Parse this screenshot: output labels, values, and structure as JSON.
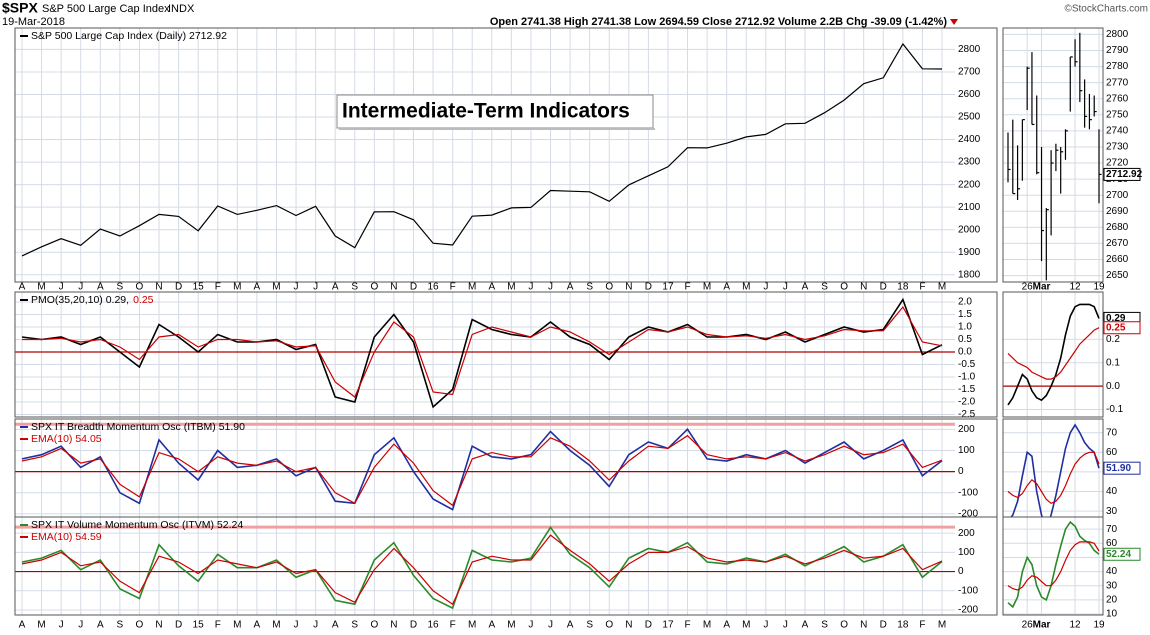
{
  "header": {
    "symbol": "$SPX",
    "name": "S&P 500 Large Cap Index",
    "exchange": "INDX",
    "date": "19-Mar-2018",
    "stats": "Open 2741.38 High 2741.38 Low 2694.59 Close 2712.92 Volume 2.2B Chg -39.09 (-1.42%)",
    "credit": "©StockCharts.com"
  },
  "chart_data": [
    {
      "type": "line",
      "annotation": "Intermediate-Term Indicators",
      "categories": [
        "A",
        "M",
        "J",
        "J",
        "A",
        "S",
        "O",
        "N",
        "D",
        "15",
        "F",
        "M",
        "A",
        "M",
        "J",
        "J",
        "A",
        "S",
        "O",
        "N",
        "D",
        "16",
        "F",
        "M",
        "A",
        "M",
        "J",
        "J",
        "A",
        "S",
        "O",
        "N",
        "D",
        "17",
        "F",
        "M",
        "A",
        "M",
        "J",
        "J",
        "A",
        "S",
        "O",
        "N",
        "D",
        "18",
        "F",
        "M"
      ],
      "ylim": [
        1768,
        2895
      ],
      "yticks": [
        1800,
        1900,
        2000,
        2100,
        2200,
        2300,
        2400,
        2500,
        2600,
        2700,
        2800
      ],
      "series": [
        {
          "name": "S&P 500 Large Cap Index (Daily) 2712.92",
          "color": "#000000",
          "values": [
            1884,
            1924,
            1960,
            1931,
            2003,
            1972,
            2018,
            2068,
            2059,
            1995,
            2105,
            2068,
            2086,
            2107,
            2063,
            2104,
            1972,
            1920,
            2079,
            2080,
            2044,
            1940,
            1932,
            2060,
            2065,
            2097,
            2099,
            2174,
            2171,
            2168,
            2126,
            2199,
            2239,
            2279,
            2364,
            2363,
            2384,
            2412,
            2423,
            2470,
            2472,
            2519,
            2575,
            2648,
            2674,
            2824,
            2714,
            2712.92
          ]
        }
      ]
    },
    {
      "type": "line",
      "legend": "inline",
      "ylim": [
        -2.6,
        2.4
      ],
      "yticks": [
        {
          "value": 2,
          "label": "2.0"
        },
        1.5,
        {
          "value": 1,
          "label": "1.0"
        },
        0.5,
        {
          "value": 0,
          "label": "0.0"
        },
        -0.5,
        {
          "value": -1,
          "label": "-1.0"
        },
        -1.5,
        {
          "value": -2,
          "label": "-2.0"
        },
        -2.5
      ],
      "ref_lines": [
        {
          "value": 0,
          "color": "#b00000"
        }
      ],
      "series": [
        {
          "name": "PMO(35,20,10) 0.29,",
          "color": "#000000",
          "values": [
            0.6,
            0.5,
            0.6,
            0.3,
            0.6,
            0.0,
            -0.6,
            1.1,
            0.6,
            0.0,
            0.7,
            0.4,
            0.4,
            0.5,
            0.1,
            0.3,
            -1.8,
            -2.0,
            0.6,
            1.5,
            0.4,
            -2.2,
            -1.5,
            1.3,
            0.9,
            0.7,
            0.6,
            1.2,
            0.6,
            0.3,
            -0.3,
            0.6,
            1.0,
            0.8,
            1.1,
            0.6,
            0.6,
            0.7,
            0.5,
            0.8,
            0.4,
            0.7,
            1.0,
            0.8,
            0.9,
            2.1,
            -0.1,
            0.29
          ]
        },
        {
          "name": "0.25",
          "color": "#cc0000",
          "values": [
            0.5,
            0.5,
            0.55,
            0.4,
            0.5,
            0.2,
            -0.3,
            0.6,
            0.7,
            0.2,
            0.5,
            0.5,
            0.4,
            0.45,
            0.2,
            0.25,
            -1.2,
            -1.8,
            0.0,
            1.2,
            0.6,
            -1.6,
            -1.7,
            0.7,
            1.0,
            0.8,
            0.6,
            1.0,
            0.8,
            0.4,
            -0.1,
            0.4,
            0.9,
            0.8,
            1.0,
            0.7,
            0.6,
            0.65,
            0.55,
            0.7,
            0.5,
            0.65,
            0.9,
            0.85,
            0.85,
            1.8,
            0.4,
            0.25
          ]
        }
      ]
    },
    {
      "type": "line",
      "legend": "stacked",
      "ylim": [
        -215,
        249
      ],
      "yticks": [
        200,
        100,
        0,
        -100,
        -200
      ],
      "ref_lines": [
        {
          "value": 0,
          "color": "#b00000"
        },
        {
          "value": 224,
          "color": "#f0a0a0"
        }
      ],
      "series": [
        {
          "name": "SPX IT Breadth Momentum Osc (ITBM) 51.90",
          "color": "#1f2fa0",
          "values": [
            60,
            80,
            120,
            20,
            70,
            -100,
            -150,
            150,
            40,
            -40,
            100,
            20,
            30,
            60,
            -20,
            20,
            -140,
            -150,
            80,
            160,
            0,
            -130,
            -180,
            120,
            70,
            60,
            80,
            190,
            100,
            30,
            -70,
            80,
            140,
            110,
            200,
            60,
            50,
            80,
            60,
            100,
            40,
            90,
            140,
            60,
            100,
            150,
            -20,
            51.9
          ]
        },
        {
          "name": "EMA(10) 54.05",
          "color": "#cc0000",
          "values": [
            50,
            70,
            110,
            40,
            60,
            -60,
            -120,
            90,
            60,
            0,
            70,
            40,
            30,
            50,
            0,
            20,
            -100,
            -150,
            20,
            130,
            40,
            -90,
            -160,
            60,
            90,
            70,
            70,
            160,
            120,
            50,
            -40,
            50,
            120,
            110,
            170,
            80,
            60,
            70,
            60,
            90,
            50,
            80,
            120,
            80,
            90,
            130,
            20,
            54.05
          ]
        }
      ]
    },
    {
      "type": "line",
      "legend": "stacked",
      "ylim": [
        -226,
        284
      ],
      "yticks": [
        200,
        100,
        0,
        -100,
        -200
      ],
      "categories": [
        "A",
        "M",
        "J",
        "J",
        "A",
        "S",
        "O",
        "N",
        "D",
        "15",
        "F",
        "M",
        "A",
        "M",
        "J",
        "J",
        "A",
        "S",
        "O",
        "N",
        "D",
        "16",
        "F",
        "M",
        "A",
        "M",
        "J",
        "J",
        "A",
        "S",
        "O",
        "N",
        "D",
        "17",
        "F",
        "M",
        "A",
        "M",
        "J",
        "J",
        "A",
        "S",
        "O",
        "N",
        "D",
        "18",
        "F",
        "M"
      ],
      "ref_lines": [
        {
          "value": 0,
          "color": "#b00000"
        },
        {
          "value": 231,
          "color": "#f0a0a0"
        }
      ],
      "series": [
        {
          "name": "SPX IT Volume Momentum Osc (ITVM) 52.24",
          "color": "#2a8a2a",
          "values": [
            50,
            70,
            110,
            10,
            60,
            -90,
            -140,
            140,
            30,
            -50,
            90,
            20,
            20,
            60,
            -30,
            10,
            -150,
            -170,
            60,
            150,
            -20,
            -140,
            -190,
            110,
            60,
            50,
            70,
            230,
            90,
            20,
            -80,
            70,
            120,
            100,
            150,
            50,
            40,
            70,
            50,
            90,
            30,
            80,
            130,
            50,
            80,
            140,
            -30,
            52.24
          ]
        },
        {
          "name": "EMA(10) 54.59",
          "color": "#cc0000",
          "values": [
            40,
            60,
            100,
            30,
            50,
            -50,
            -110,
            80,
            50,
            -10,
            60,
            40,
            20,
            50,
            -10,
            10,
            -110,
            -160,
            10,
            120,
            20,
            -100,
            -170,
            50,
            80,
            60,
            60,
            190,
            110,
            40,
            -50,
            40,
            100,
            100,
            130,
            70,
            50,
            60,
            50,
            80,
            40,
            70,
            110,
            70,
            80,
            120,
            10,
            54.59
          ]
        }
      ]
    },
    {
      "type": "hlc",
      "color": "#000000",
      "last_label": "2712.92",
      "categories": [
        null,
        null,
        null,
        null,
        "26",
        null,
        null,
        "Mar",
        null,
        null,
        null,
        null,
        null,
        null,
        "12",
        null,
        null,
        null,
        null,
        "19"
      ],
      "ylim": [
        2646,
        2804
      ],
      "yticks": [
        2650,
        2660,
        2670,
        2680,
        2690,
        2700,
        2710,
        2720,
        2730,
        2740,
        2750,
        2760,
        2770,
        2780,
        2790,
        2800
      ],
      "high": [
        2739,
        2747,
        2731,
        2747,
        2780,
        2789,
        2762,
        2730,
        2692,
        2728,
        2732,
        2730,
        2741,
        2786,
        2797,
        2801,
        2772,
        2763,
        2762,
        2741
      ],
      "low": [
        2708,
        2701,
        2697,
        2709,
        2753,
        2744,
        2713,
        2659,
        2647,
        2675,
        2715,
        2701,
        2722,
        2752,
        2780,
        2758,
        2742,
        2741,
        2749,
        2695
      ],
      "close": [
        2716,
        2701,
        2704,
        2747,
        2779,
        2744,
        2714,
        2678,
        2691,
        2720,
        2728,
        2727,
        2740,
        2786,
        2783,
        2765,
        2749,
        2747,
        2752,
        2712.92
      ]
    },
    {
      "type": "line",
      "ylim": [
        -0.132,
        0.403
      ],
      "yticks": [
        0.2,
        0.1,
        {
          "value": 0,
          "label": "0.0"
        },
        -0.1
      ],
      "ref_lines": [
        {
          "value": 0,
          "color": "#b00000"
        }
      ],
      "series": [
        {
          "color": "#000000",
          "last_label": "0.29",
          "values": [
            -0.08,
            -0.05,
            0.0,
            0.05,
            0.03,
            -0.02,
            -0.05,
            -0.06,
            -0.04,
            0.0,
            0.05,
            0.12,
            0.22,
            0.3,
            0.34,
            0.35,
            0.35,
            0.35,
            0.34,
            0.29
          ]
        },
        {
          "color": "#cc0000",
          "last_label": "0.25",
          "values": [
            0.14,
            0.12,
            0.1,
            0.09,
            0.08,
            0.06,
            0.05,
            0.04,
            0.03,
            0.03,
            0.04,
            0.06,
            0.09,
            0.12,
            0.15,
            0.18,
            0.2,
            0.22,
            0.24,
            0.25
          ]
        }
      ]
    },
    {
      "type": "line",
      "ylim": [
        27,
        77
      ],
      "yticks": [
        70,
        60,
        50,
        40,
        30
      ],
      "series": [
        {
          "color": "#1f2fa0",
          "last_label": "51.90",
          "values": [
            25,
            28,
            35,
            48,
            60,
            58,
            40,
            28,
            22,
            28,
            38,
            50,
            62,
            70,
            74,
            70,
            65,
            62,
            60,
            51.9
          ]
        },
        {
          "color": "#cc0000",
          "values": [
            40,
            38,
            37,
            39,
            43,
            46,
            44,
            40,
            36,
            34,
            35,
            38,
            43,
            49,
            54,
            57,
            59,
            60,
            60,
            54.05
          ]
        }
      ]
    },
    {
      "type": "line",
      "ylim": [
        9.3,
        78.6
      ],
      "yticks": [
        70,
        60,
        50,
        40,
        30,
        20,
        10
      ],
      "categories": [
        null,
        null,
        null,
        null,
        "26",
        null,
        null,
        "Mar",
        null,
        null,
        null,
        null,
        null,
        null,
        "12",
        null,
        null,
        null,
        null,
        "19"
      ],
      "series": [
        {
          "color": "#2a8a2a",
          "last_label": "52.24",
          "values": [
            18,
            15,
            22,
            40,
            50,
            45,
            30,
            22,
            20,
            30,
            45,
            58,
            70,
            75,
            72,
            65,
            62,
            60,
            55,
            52.24
          ]
        },
        {
          "color": "#cc0000",
          "values": [
            30,
            28,
            27,
            29,
            34,
            37,
            36,
            33,
            30,
            30,
            34,
            40,
            48,
            55,
            59,
            61,
            61,
            61,
            60,
            54.59
          ]
        }
      ]
    }
  ]
}
